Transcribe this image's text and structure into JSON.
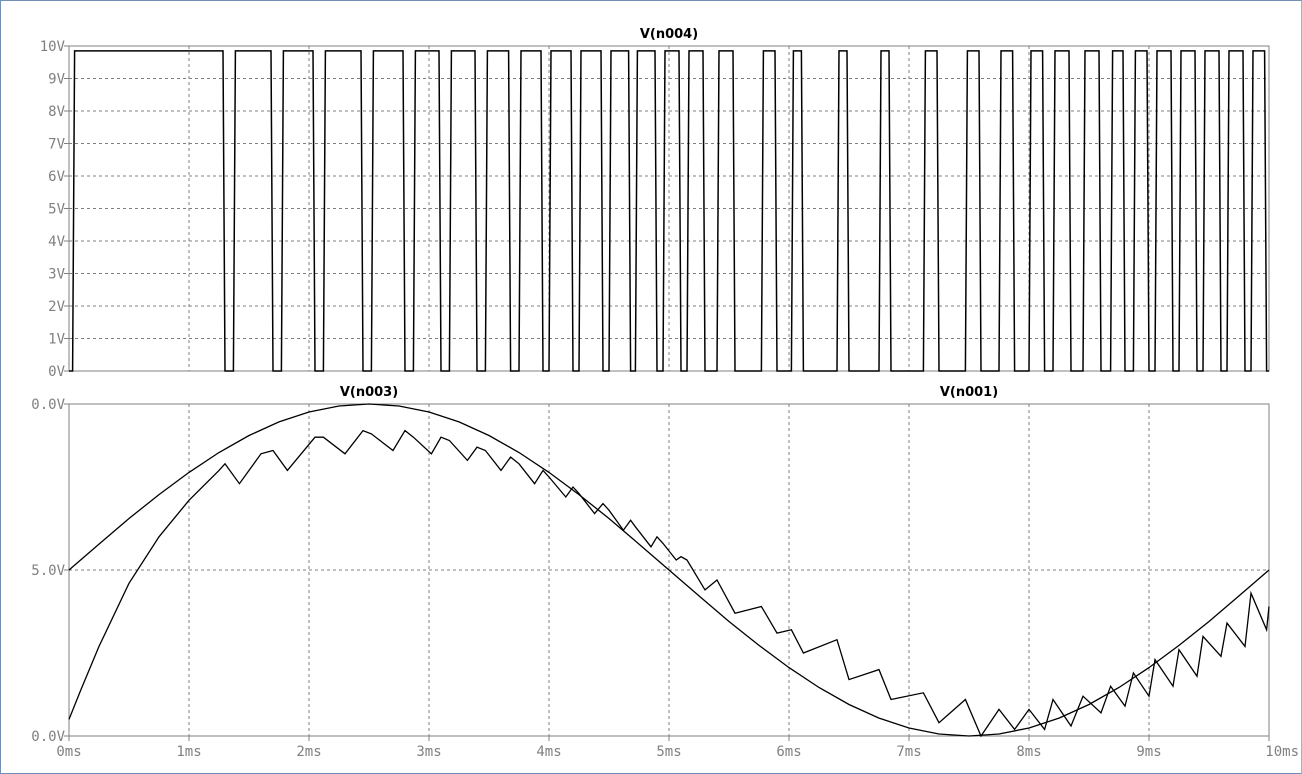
{
  "chart_data": [
    {
      "type": "line",
      "title": "V(n004)",
      "xlim": [
        0,
        10
      ],
      "ylim": [
        0,
        10
      ],
      "y_ticks": [
        "0V",
        "1V",
        "2V",
        "3V",
        "4V",
        "5V",
        "6V",
        "7V",
        "8V",
        "9V",
        "10V"
      ],
      "grid": true,
      "series": [
        {
          "name": "V(n004)",
          "high_value": 9.85,
          "low_value": 0,
          "pulses_ms": [
            [
              0.03,
              1.3
            ],
            [
              1.37,
              1.7
            ],
            [
              1.77,
              2.05
            ],
            [
              2.12,
              2.45
            ],
            [
              2.52,
              2.8
            ],
            [
              2.87,
              3.1
            ],
            [
              3.17,
              3.4
            ],
            [
              3.47,
              3.68
            ],
            [
              3.75,
              3.95
            ],
            [
              4.0,
              4.2
            ],
            [
              4.25,
              4.45
            ],
            [
              4.5,
              4.68
            ],
            [
              4.72,
              4.9
            ],
            [
              4.95,
              5.1
            ],
            [
              5.15,
              5.3
            ],
            [
              5.4,
              5.55
            ],
            [
              5.77,
              5.9
            ],
            [
              6.02,
              6.12
            ],
            [
              6.4,
              6.5
            ],
            [
              6.75,
              6.85
            ],
            [
              7.12,
              7.25
            ],
            [
              7.47,
              7.6
            ],
            [
              7.75,
              7.88
            ],
            [
              8.0,
              8.13
            ],
            [
              8.2,
              8.35
            ],
            [
              8.45,
              8.6
            ],
            [
              8.68,
              8.8
            ],
            [
              8.87,
              9.0
            ],
            [
              9.05,
              9.2
            ],
            [
              9.25,
              9.4
            ],
            [
              9.45,
              9.6
            ],
            [
              9.65,
              9.8
            ],
            [
              9.85,
              9.98
            ]
          ]
        }
      ]
    },
    {
      "type": "line",
      "xlim": [
        0,
        10
      ],
      "ylim": [
        0,
        10
      ],
      "x_ticks": [
        "0ms",
        "1ms",
        "2ms",
        "3ms",
        "4ms",
        "5ms",
        "6ms",
        "7ms",
        "8ms",
        "9ms",
        "10ms"
      ],
      "y_ticks": [
        "0.0V",
        "5.0V",
        "0.0V"
      ],
      "grid": true,
      "series": [
        {
          "name": "V(n003)",
          "x": [
            0,
            0.25,
            0.5,
            0.75,
            1.0,
            1.25,
            1.5,
            1.75,
            2.0,
            2.25,
            2.5,
            2.75,
            3.0,
            3.25,
            3.5,
            3.75,
            4.0,
            4.25,
            4.5,
            4.75,
            5.0,
            5.25,
            5.5,
            5.75,
            6.0,
            6.25,
            6.5,
            6.75,
            7.0,
            7.25,
            7.5,
            7.75,
            8.0,
            8.25,
            8.5,
            8.75,
            9.0,
            9.25,
            9.5,
            9.75,
            10.0
          ],
          "values": [
            5.0,
            5.78,
            6.55,
            7.27,
            7.94,
            8.54,
            9.05,
            9.46,
            9.76,
            9.94,
            10.0,
            9.94,
            9.76,
            9.46,
            9.05,
            8.54,
            7.94,
            7.27,
            6.55,
            5.78,
            5.0,
            4.22,
            3.45,
            2.73,
            2.06,
            1.46,
            0.95,
            0.54,
            0.24,
            0.06,
            0.0,
            0.06,
            0.24,
            0.54,
            0.95,
            1.46,
            2.06,
            2.73,
            3.45,
            4.22,
            5.0
          ]
        },
        {
          "name": "V(n001)",
          "x": [
            0,
            0.1,
            0.25,
            0.5,
            0.75,
            1.0,
            1.25,
            1.3,
            1.42,
            1.6,
            1.7,
            1.82,
            2.05,
            2.12,
            2.3,
            2.45,
            2.52,
            2.7,
            2.8,
            2.87,
            3.02,
            3.1,
            3.17,
            3.32,
            3.4,
            3.47,
            3.6,
            3.68,
            3.75,
            3.88,
            3.95,
            4.0,
            4.14,
            4.2,
            4.25,
            4.38,
            4.45,
            4.5,
            4.62,
            4.68,
            4.72,
            4.85,
            4.9,
            4.95,
            5.06,
            5.1,
            5.15,
            5.3,
            5.4,
            5.55,
            5.77,
            5.9,
            6.02,
            6.12,
            6.4,
            6.5,
            6.75,
            6.85,
            7.12,
            7.25,
            7.47,
            7.6,
            7.75,
            7.88,
            8.0,
            8.13,
            8.2,
            8.35,
            8.45,
            8.6,
            8.68,
            8.8,
            8.87,
            9.0,
            9.05,
            9.2,
            9.25,
            9.4,
            9.45,
            9.6,
            9.65,
            9.8,
            9.85,
            9.98,
            10.0
          ],
          "values": [
            0.5,
            1.4,
            2.7,
            4.6,
            6.0,
            7.1,
            8.0,
            8.2,
            7.6,
            8.5,
            8.6,
            8.0,
            9.0,
            9.0,
            8.5,
            9.2,
            9.1,
            8.6,
            9.2,
            9.0,
            8.5,
            9.0,
            8.9,
            8.3,
            8.7,
            8.6,
            8.0,
            8.4,
            8.2,
            7.6,
            8.0,
            7.8,
            7.2,
            7.5,
            7.3,
            6.7,
            7.0,
            6.8,
            6.2,
            6.5,
            6.3,
            5.7,
            6.0,
            5.8,
            5.3,
            5.4,
            5.3,
            4.4,
            4.7,
            3.7,
            3.9,
            3.1,
            3.2,
            2.5,
            2.9,
            1.7,
            2.0,
            1.1,
            1.3,
            0.4,
            1.1,
            0.0,
            0.8,
            0.2,
            0.8,
            0.2,
            1.1,
            0.3,
            1.2,
            0.7,
            1.5,
            0.9,
            1.9,
            1.2,
            2.3,
            1.5,
            2.6,
            1.8,
            3.0,
            2.4,
            3.4,
            2.7,
            4.3,
            3.2,
            3.9
          ]
        }
      ]
    }
  ]
}
